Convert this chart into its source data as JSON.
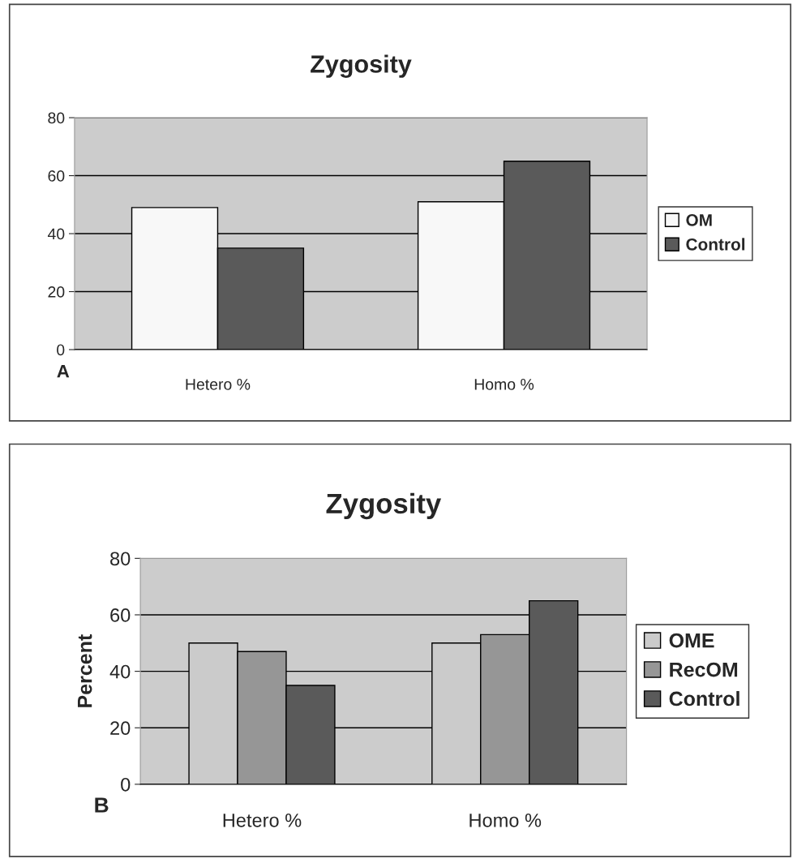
{
  "chart_data": [
    {
      "type": "bar",
      "title": "Zygosity",
      "categories": [
        "Hetero %",
        "Homo %"
      ],
      "series": [
        {
          "name": "OM",
          "color": "#f8f8f8",
          "values": [
            49,
            51
          ]
        },
        {
          "name": "Control",
          "color": "#5a5a5a",
          "values": [
            35,
            65
          ]
        }
      ],
      "ylim": [
        0,
        80
      ],
      "yticks": [
        0,
        20,
        40,
        60,
        80
      ],
      "grid": "y",
      "legend": "right",
      "annotations": [
        "A"
      ]
    },
    {
      "type": "bar",
      "title": "Zygosity",
      "ylabel": "Percent",
      "categories": [
        "Hetero %",
        "Homo %"
      ],
      "series": [
        {
          "name": "OME",
          "color": "#cbcbcb",
          "values": [
            50,
            50
          ]
        },
        {
          "name": "RecOM",
          "color": "#969696",
          "values": [
            47,
            53
          ]
        },
        {
          "name": "Control",
          "color": "#5a5a5a",
          "values": [
            35,
            65
          ]
        }
      ],
      "ylim": [
        0,
        80
      ],
      "yticks": [
        0,
        20,
        40,
        60,
        80
      ],
      "grid": "y",
      "legend": "right",
      "annotations": [
        "B"
      ]
    }
  ]
}
